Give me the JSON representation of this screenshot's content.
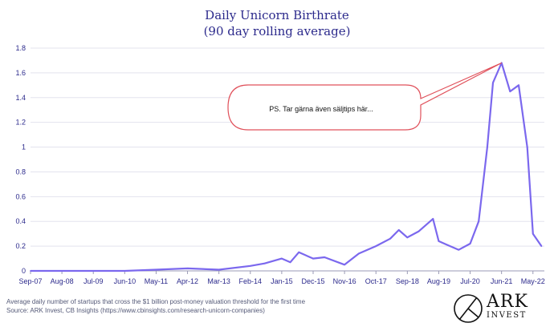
{
  "chart_data": {
    "type": "line",
    "title": "Daily Unicorn Birthrate",
    "subtitle": "(90 day rolling average)",
    "xlabel": "",
    "ylabel": "",
    "ylim": [
      0,
      1.8
    ],
    "yticks": [
      "0",
      "0.2",
      "0.4",
      "0.6",
      "0.8",
      "1",
      "1.2",
      "1.4",
      "1.6",
      "1.8"
    ],
    "xticks": [
      "Sep-07",
      "Aug-08",
      "Jul-09",
      "Jun-10",
      "May-11",
      "Apr-12",
      "Mar-13",
      "Feb-14",
      "Jan-15",
      "Dec-15",
      "Nov-16",
      "Oct-17",
      "Sep-18",
      "Aug-19",
      "Jul-20",
      "Jun-21",
      "May-22"
    ],
    "grid": true,
    "legend": "none",
    "line_color": "#7b68ee",
    "series": [
      {
        "values": [
          [
            "Sep-07",
            0.0
          ],
          [
            "Aug-08",
            0.0
          ],
          [
            "Jul-09",
            0.0
          ],
          [
            "Jun-10",
            0.0
          ],
          [
            "May-11",
            0.01
          ],
          [
            "Apr-12",
            0.02
          ],
          [
            "Mar-13",
            0.01
          ],
          [
            "Feb-14",
            0.04
          ],
          [
            "Jul-14",
            0.06
          ],
          [
            "Jan-15",
            0.1
          ],
          [
            "Apr-15",
            0.07
          ],
          [
            "Jul-15",
            0.15
          ],
          [
            "Dec-15",
            0.1
          ],
          [
            "Apr-16",
            0.11
          ],
          [
            "Nov-16",
            0.05
          ],
          [
            "Apr-17",
            0.14
          ],
          [
            "Oct-17",
            0.2
          ],
          [
            "Mar-18",
            0.26
          ],
          [
            "Jun-18",
            0.33
          ],
          [
            "Sep-18",
            0.27
          ],
          [
            "Jan-19",
            0.32
          ],
          [
            "Jun-19",
            0.42
          ],
          [
            "Aug-19",
            0.24
          ],
          [
            "Nov-19",
            0.21
          ],
          [
            "Mar-20",
            0.17
          ],
          [
            "Jul-20",
            0.22
          ],
          [
            "Oct-20",
            0.4
          ],
          [
            "Jan-21",
            1.0
          ],
          [
            "Mar-21",
            1.52
          ],
          [
            "Jun-21",
            1.68
          ],
          [
            "Sep-21",
            1.45
          ],
          [
            "Dec-21",
            1.5
          ],
          [
            "Mar-22",
            1.0
          ],
          [
            "May-22",
            0.3
          ],
          [
            "Aug-22",
            0.2
          ]
        ]
      }
    ]
  },
  "callout": {
    "text": "PS. Tar gärna även säljtips här..."
  },
  "footnotes": {
    "line1": "Average daily number of startups that cross the $1 billion post-money valuation threshold for the first time",
    "line2": "Source: ARK Invest, CB Insights (https://www.cbinsights.com/research-unicorn-companies)"
  },
  "logo": {
    "line1": "ARK",
    "line2": "INVEST"
  }
}
